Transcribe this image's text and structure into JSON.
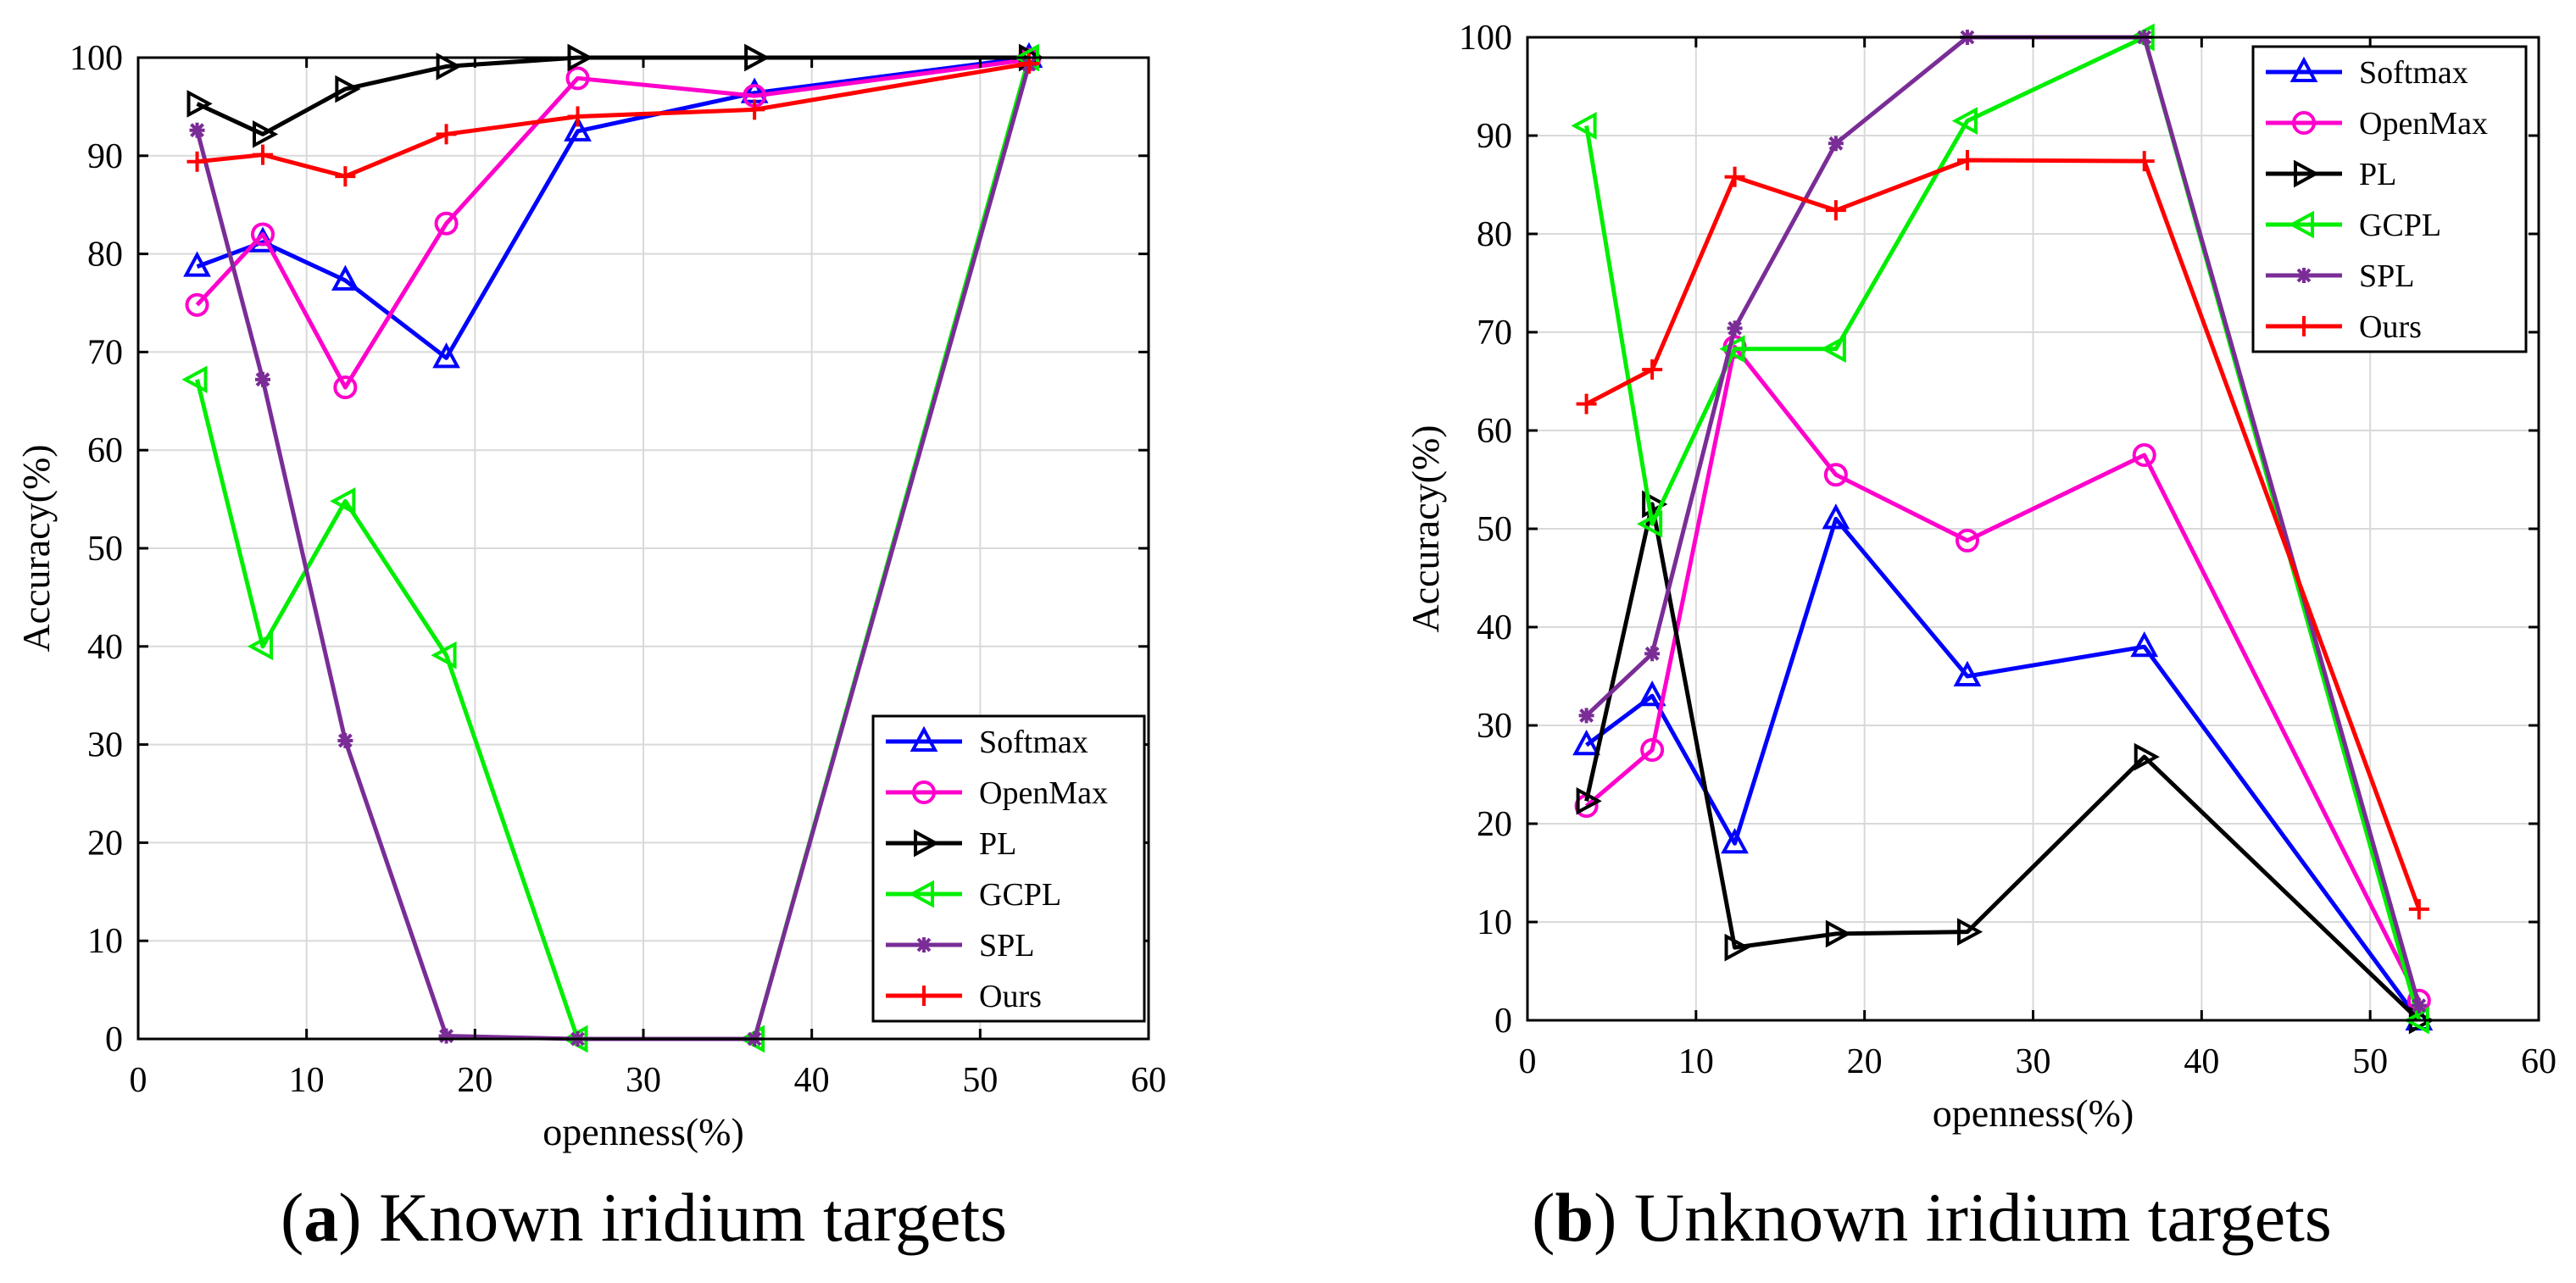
{
  "colors": {
    "Softmax": "#0000ff",
    "OpenMax": "#ff00cc",
    "PL": "#000000",
    "GCPL": "#00ee00",
    "SPL": "#7a2d96",
    "Ours": "#ff0000",
    "grid": "#d9d9d9"
  },
  "captions": [
    {
      "letter": "a",
      "text": "Known iridium targets"
    },
    {
      "letter": "b",
      "text": "Unknown iridium targets"
    }
  ],
  "chart_data": [
    {
      "type": "line",
      "id": "known",
      "title": "",
      "xlabel": "openness(%)",
      "ylabel": "Accuracy(%)",
      "xlim": [
        0,
        60
      ],
      "ylim": [
        0,
        100
      ],
      "xticks": [
        0,
        10,
        20,
        30,
        40,
        50,
        60
      ],
      "yticks": [
        0,
        10,
        20,
        30,
        40,
        50,
        60,
        70,
        80,
        90,
        100
      ],
      "grid": true,
      "legend_position": "bottom-right",
      "x": [
        3.5,
        7.4,
        12.3,
        18.3,
        26.1,
        36.6,
        52.9
      ],
      "series": [
        {
          "name": "Softmax",
          "marker": "triangle-up",
          "values": [
            78.7,
            81.2,
            77.3,
            69.4,
            92.5,
            96.4,
            100
          ]
        },
        {
          "name": "OpenMax",
          "marker": "circle",
          "values": [
            74.8,
            82.0,
            66.4,
            83.1,
            97.9,
            96.1,
            99.8
          ]
        },
        {
          "name": "PL",
          "marker": "triangle-right",
          "values": [
            95.3,
            92.2,
            96.8,
            99.1,
            100,
            100,
            100
          ]
        },
        {
          "name": "GCPL",
          "marker": "triangle-left",
          "values": [
            67.2,
            40.0,
            54.8,
            39.1,
            0.0,
            0.0,
            100
          ]
        },
        {
          "name": "SPL",
          "marker": "asterisk",
          "values": [
            92.6,
            67.2,
            30.4,
            0.3,
            0.0,
            0.0,
            99.3
          ]
        },
        {
          "name": "Ours",
          "marker": "plus",
          "values": [
            89.4,
            90.1,
            87.9,
            92.2,
            94.0,
            94.7,
            99.4
          ]
        }
      ]
    },
    {
      "type": "line",
      "id": "unknown",
      "title": "",
      "xlabel": "openness(%)",
      "ylabel": "Accuracy(%)",
      "xlim": [
        0,
        60
      ],
      "ylim": [
        0,
        100
      ],
      "xticks": [
        0,
        10,
        20,
        30,
        40,
        50,
        60
      ],
      "yticks": [
        0,
        10,
        20,
        30,
        40,
        50,
        60,
        70,
        80,
        90,
        100
      ],
      "grid": true,
      "legend_position": "top-right",
      "x": [
        3.5,
        7.4,
        12.3,
        18.3,
        26.1,
        36.6,
        52.9
      ],
      "series": [
        {
          "name": "Softmax",
          "marker": "triangle-up",
          "values": [
            28.0,
            33.0,
            18.0,
            51.0,
            35.0,
            38.0,
            0.0
          ]
        },
        {
          "name": "OpenMax",
          "marker": "circle",
          "values": [
            21.8,
            27.5,
            68.5,
            55.5,
            48.8,
            57.5,
            2.0
          ]
        },
        {
          "name": "PL",
          "marker": "triangle-right",
          "values": [
            22.3,
            52.5,
            7.4,
            8.8,
            9.0,
            26.8,
            0.0
          ]
        },
        {
          "name": "GCPL",
          "marker": "triangle-left",
          "values": [
            91.0,
            50.5,
            68.3,
            68.3,
            91.5,
            100,
            0.0
          ]
        },
        {
          "name": "SPL",
          "marker": "asterisk",
          "values": [
            31.0,
            37.3,
            70.4,
            89.2,
            100,
            100,
            1.5
          ]
        },
        {
          "name": "Ours",
          "marker": "plus",
          "values": [
            62.7,
            66.2,
            85.8,
            82.4,
            87.5,
            87.4,
            11.3
          ]
        }
      ]
    }
  ]
}
